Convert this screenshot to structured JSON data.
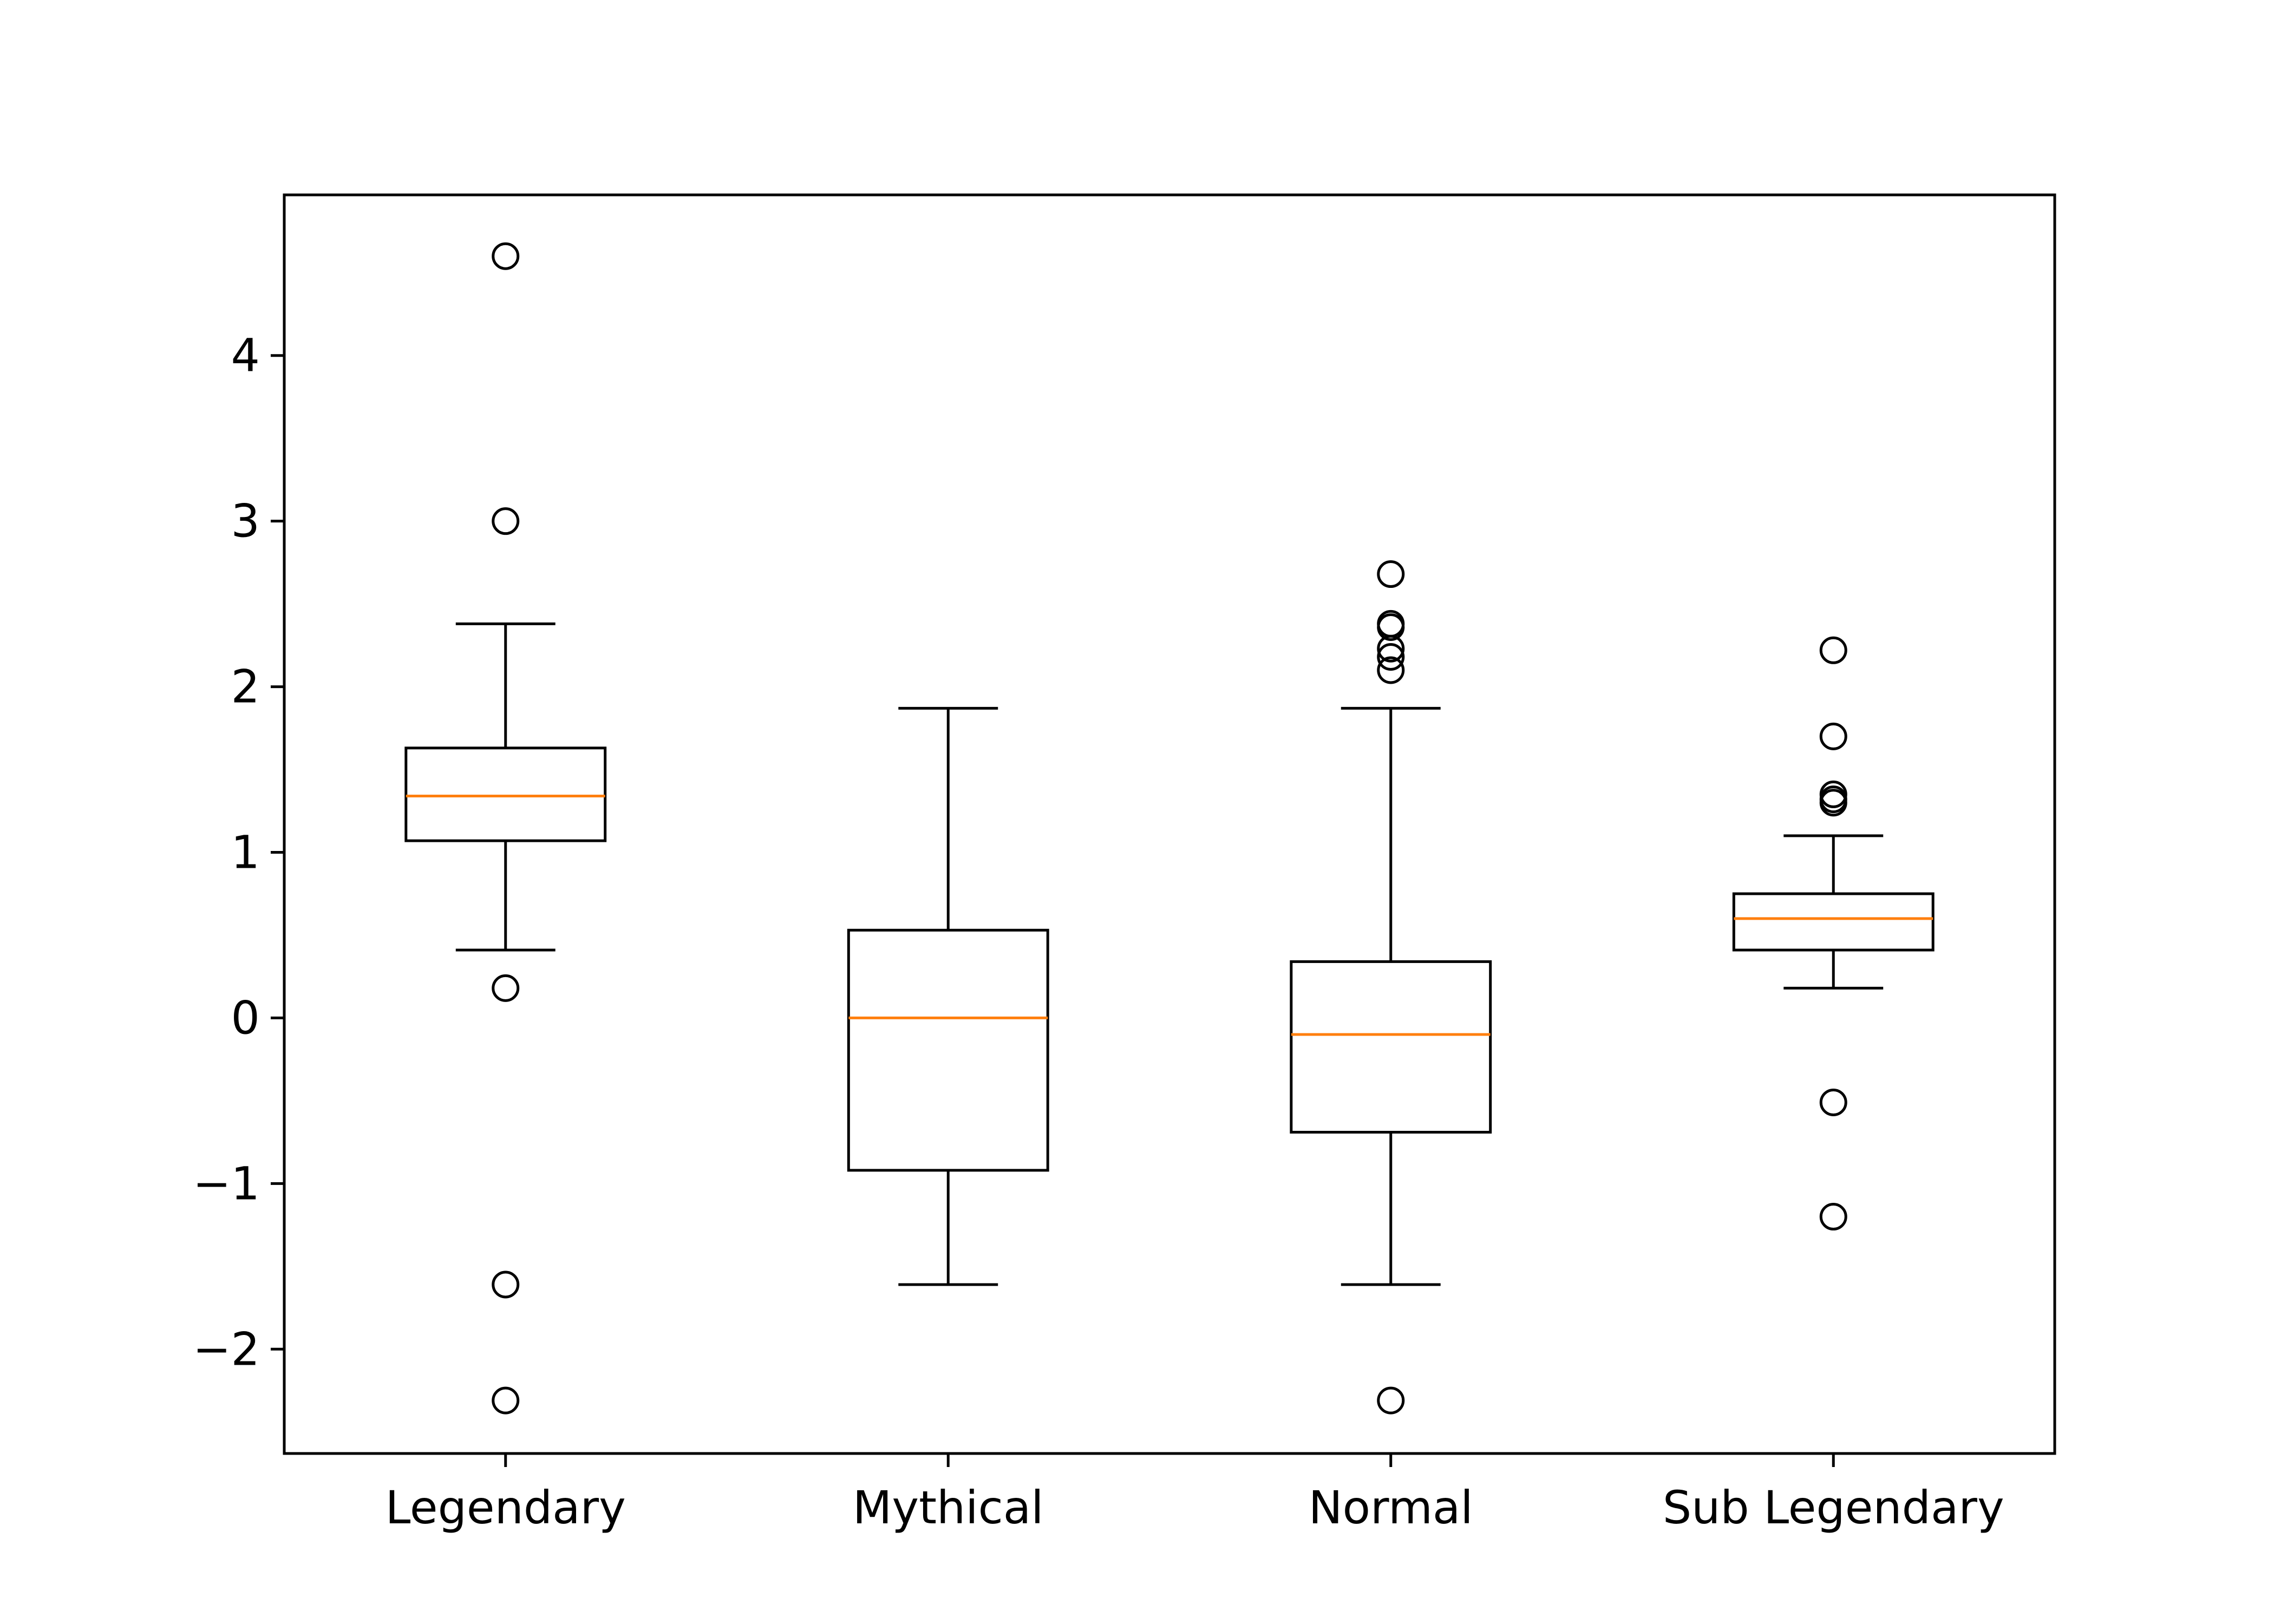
{
  "chart_data": {
    "type": "boxplot",
    "title": "",
    "xlabel": "",
    "ylabel": "",
    "ylim": [
      -2.63,
      4.97
    ],
    "yticks": [
      {
        "value": -2,
        "label": "−2"
      },
      {
        "value": -1,
        "label": "−1"
      },
      {
        "value": 0,
        "label": "0"
      },
      {
        "value": 1,
        "label": "1"
      },
      {
        "value": 2,
        "label": "2"
      },
      {
        "value": 3,
        "label": "3"
      },
      {
        "value": 4,
        "label": "4"
      }
    ],
    "categories": [
      "Legendary",
      "Mythical",
      "Normal",
      "Sub Legendary"
    ],
    "boxes": [
      {
        "whisker_low": 0.41,
        "q1": 1.07,
        "median": 1.34,
        "q3": 1.63,
        "whisker_high": 2.38,
        "outliers": [
          4.6,
          3.0,
          0.18,
          -1.61,
          -2.31
        ]
      },
      {
        "whisker_low": -1.61,
        "q1": -0.92,
        "median": 0.0,
        "q3": 0.53,
        "whisker_high": 1.87,
        "outliers": []
      },
      {
        "whisker_low": -1.61,
        "q1": -0.69,
        "median": -0.1,
        "q3": 0.34,
        "whisker_high": 1.87,
        "outliers": [
          2.68,
          2.38,
          2.36,
          2.23,
          2.18,
          2.1,
          -2.31
        ]
      },
      {
        "whisker_low": 0.18,
        "q1": 0.41,
        "median": 0.6,
        "q3": 0.75,
        "whisker_high": 1.1,
        "outliers": [
          2.22,
          1.7,
          1.35,
          1.32,
          1.3,
          -0.51,
          -1.2
        ]
      }
    ],
    "colors": {
      "box": "#000000",
      "median": "#ff7f0e",
      "outlier": "#000000"
    },
    "grid": false
  }
}
